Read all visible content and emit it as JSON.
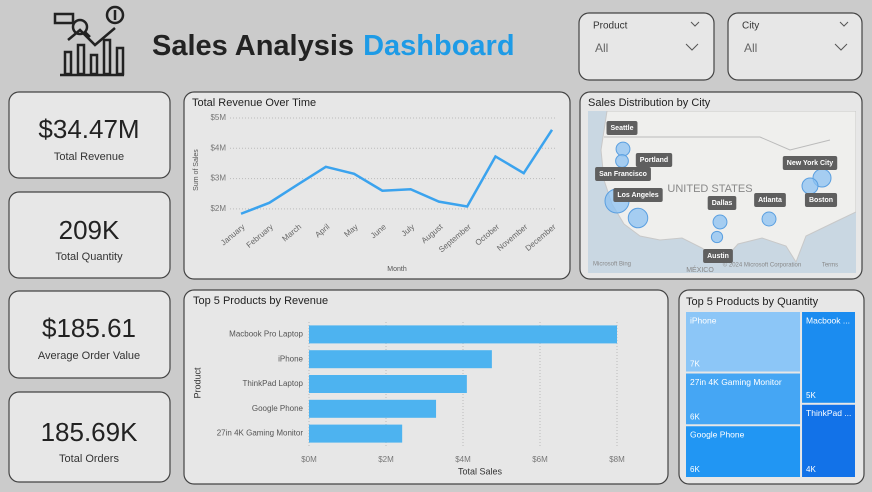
{
  "header": {
    "title": "Sales Analysis",
    "title_accent": "Dashboard"
  },
  "filters": [
    {
      "label": "Product",
      "value": "All"
    },
    {
      "label": "City",
      "value": "All"
    }
  ],
  "kpis": [
    {
      "value": "$34.47M",
      "label": "Total Revenue"
    },
    {
      "value": "209K",
      "label": "Total Quantity"
    },
    {
      "value": "$185.61",
      "label": "Average Order Value"
    },
    {
      "value": "185.69K",
      "label": "Total Orders"
    }
  ],
  "chart_data": [
    {
      "type": "line",
      "title": "Total Revenue Over Time",
      "x_label": "Month",
      "y_label": "Sum of Sales",
      "categories": [
        "January",
        "February",
        "March",
        "April",
        "May",
        "June",
        "July",
        "August",
        "September",
        "October",
        "November",
        "December"
      ],
      "values": [
        1840000,
        2200000,
        2800000,
        3390000,
        3160000,
        2600000,
        2650000,
        2240000,
        2080000,
        3730000,
        3180000,
        4610000
      ],
      "color": "#3ba3ee",
      "ylim": [
        1700000,
        5000000
      ],
      "yticks": [
        {
          "value": 2000000,
          "label": "$2M"
        },
        {
          "value": 3000000,
          "label": "$3M"
        },
        {
          "value": 4000000,
          "label": "$4M"
        },
        {
          "value": 5000000,
          "label": "$5M"
        }
      ],
      "grid": true
    },
    {
      "type": "map",
      "title": "Sales Distribution by City",
      "categories": [
        "Seattle",
        "Portland",
        "San Francisco",
        "Los Angeles",
        "Dallas",
        "Atlanta",
        "Austin",
        "New York City",
        "Boston"
      ],
      "values": [
        2750000,
        2320000,
        8260000,
        5450000,
        2770000,
        2800000,
        1820000,
        4660000,
        3660000
      ],
      "color": "#8cc2f2",
      "map_labels": [
        "UNITED STATES",
        "MÉXICO",
        "Microsoft Bing",
        "© 2024 Microsoft Corporation",
        "Terms"
      ]
    },
    {
      "type": "bar",
      "orientation": "horizontal",
      "title": "Top 5 Products by Revenue",
      "x_label": "Total Sales",
      "y_label": "Product",
      "categories": [
        "Macbook Pro Laptop",
        "iPhone",
        "ThinkPad Laptop",
        "Google Phone",
        "27in 4K Gaming Monitor"
      ],
      "values": [
        8000000,
        4750000,
        4100000,
        3300000,
        2420000
      ],
      "color": "#4db3f0",
      "xlim": [
        0,
        8000000
      ],
      "xticks": [
        {
          "value": 0,
          "label": "$0M"
        },
        {
          "value": 2000000,
          "label": "$2M"
        },
        {
          "value": 4000000,
          "label": "$4M"
        },
        {
          "value": 6000000,
          "label": "$6M"
        },
        {
          "value": 8000000,
          "label": "$8M"
        }
      ],
      "grid": true
    },
    {
      "type": "treemap",
      "title": "Top 5 Products by Quantity",
      "categories": [
        "iPhone",
        "27in 4K Gaming Monitor",
        "Google Phone",
        "Macbook ...",
        "ThinkPad ..."
      ],
      "values": [
        7000,
        6000,
        6000,
        5000,
        4000
      ],
      "value_labels": [
        "7K",
        "6K",
        "6K",
        "5K",
        "4K"
      ],
      "colors": [
        "#8cc6f7",
        "#45a6f4",
        "#2196f3",
        "#1b8cf0",
        "#1272e8"
      ]
    }
  ]
}
